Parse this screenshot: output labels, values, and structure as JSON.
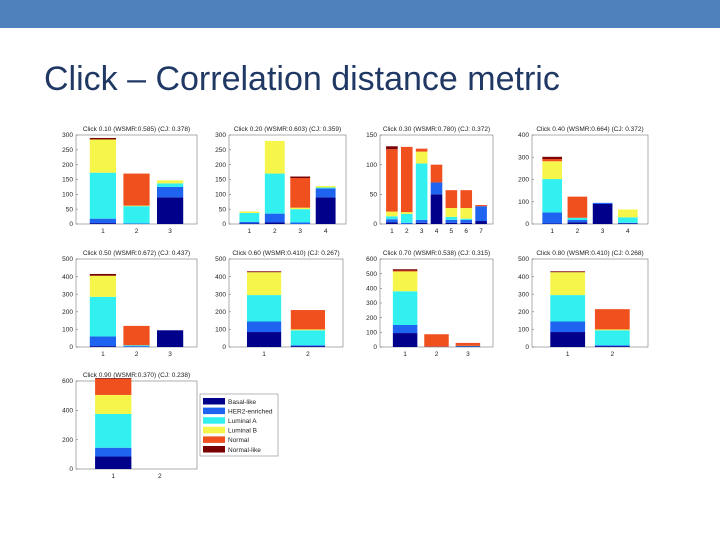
{
  "slide": {
    "title": "Click – Correlation distance metric"
  },
  "colors": {
    "Basal-like": "#00008b",
    "HER2-enriched": "#1e64f0",
    "Luminal A": "#33f0f0",
    "Luminal B": "#f5f54a",
    "Normal": "#f0501e",
    "Normal-like": "#7a0000"
  },
  "legend": {
    "entries": [
      "Basal-like",
      "HER2-enriched",
      "Luminal A",
      "Luminal B",
      "Normal",
      "Normal-like"
    ]
  },
  "chart_data": [
    {
      "type": "bar",
      "stacked": true,
      "title": "Click 0.10 (WSMR:0.585) (CJ: 0.378)",
      "categories": [
        "1",
        "2",
        "3"
      ],
      "ylim": [
        0,
        300
      ],
      "yticks": [
        0,
        50,
        100,
        150,
        200,
        250,
        300
      ],
      "series": [
        {
          "name": "Basal-like",
          "values": [
            3,
            0,
            90
          ]
        },
        {
          "name": "HER2-enriched",
          "values": [
            15,
            2,
            35
          ]
        },
        {
          "name": "Luminal A",
          "values": [
            155,
            58,
            12
          ]
        },
        {
          "name": "Luminal B",
          "values": [
            112,
            2,
            10
          ]
        },
        {
          "name": "Normal",
          "values": [
            0,
            108,
            0
          ]
        },
        {
          "name": "Normal-like",
          "values": [
            5,
            0,
            0
          ]
        }
      ]
    },
    {
      "type": "bar",
      "stacked": true,
      "title": "Click 0.20 (WSMR:0.603) (CJ: 0.359)",
      "categories": [
        "1",
        "2",
        "3",
        "4"
      ],
      "ylim": [
        0,
        300
      ],
      "yticks": [
        0,
        50,
        100,
        150,
        200,
        250,
        300
      ],
      "series": [
        {
          "name": "Basal-like",
          "values": [
            2,
            5,
            0,
            90
          ]
        },
        {
          "name": "HER2-enriched",
          "values": [
            5,
            30,
            5,
            30
          ]
        },
        {
          "name": "Luminal A",
          "values": [
            30,
            135,
            45,
            3
          ]
        },
        {
          "name": "Luminal B",
          "values": [
            5,
            110,
            5,
            5
          ]
        },
        {
          "name": "Normal",
          "values": [
            0,
            0,
            100,
            0
          ]
        },
        {
          "name": "Normal-like",
          "values": [
            0,
            0,
            5,
            0
          ]
        }
      ]
    },
    {
      "type": "bar",
      "stacked": true,
      "title": "Click 0.30 (WSMR:0.780) (CJ: 0.372)",
      "categories": [
        "1",
        "2",
        "3",
        "4",
        "5",
        "6",
        "7"
      ],
      "ylim": [
        0,
        150
      ],
      "yticks": [
        0,
        50,
        100,
        150
      ],
      "series": [
        {
          "name": "Basal-like",
          "values": [
            3,
            0,
            2,
            50,
            2,
            2,
            5
          ]
        },
        {
          "name": "HER2-enriched",
          "values": [
            5,
            2,
            5,
            20,
            5,
            5,
            25
          ]
        },
        {
          "name": "Luminal A",
          "values": [
            5,
            15,
            95,
            0,
            5,
            2,
            0
          ]
        },
        {
          "name": "Luminal B",
          "values": [
            8,
            3,
            20,
            0,
            15,
            18,
            0
          ]
        },
        {
          "name": "Normal",
          "values": [
            105,
            110,
            5,
            30,
            30,
            30,
            2
          ]
        },
        {
          "name": "Normal-like",
          "values": [
            5,
            0,
            0,
            0,
            0,
            0,
            0
          ]
        }
      ]
    },
    {
      "type": "bar",
      "stacked": true,
      "title": "Click 0.40 (WSMR:0.664) (CJ: 0.372)",
      "categories": [
        "1",
        "2",
        "3",
        "4"
      ],
      "ylim": [
        0,
        400
      ],
      "yticks": [
        0,
        100,
        200,
        300,
        400
      ],
      "series": [
        {
          "name": "Basal-like",
          "values": [
            2,
            8,
            90,
            3
          ]
        },
        {
          "name": "HER2-enriched",
          "values": [
            50,
            10,
            5,
            2
          ]
        },
        {
          "name": "Luminal A",
          "values": [
            150,
            10,
            0,
            25
          ]
        },
        {
          "name": "Luminal B",
          "values": [
            80,
            0,
            0,
            35
          ]
        },
        {
          "name": "Normal",
          "values": [
            10,
            95,
            0,
            0
          ]
        },
        {
          "name": "Normal-like",
          "values": [
            10,
            0,
            0,
            0
          ]
        }
      ]
    },
    {
      "type": "bar",
      "stacked": true,
      "title": "Click 0.50 (WSMR:0.672) (CJ: 0.437)",
      "categories": [
        "1",
        "2",
        "3"
      ],
      "ylim": [
        0,
        500
      ],
      "yticks": [
        0,
        100,
        200,
        300,
        400,
        500
      ],
      "series": [
        {
          "name": "Basal-like",
          "values": [
            5,
            0,
            95
          ]
        },
        {
          "name": "HER2-enriched",
          "values": [
            55,
            5,
            0
          ]
        },
        {
          "name": "Luminal A",
          "values": [
            225,
            5,
            0
          ]
        },
        {
          "name": "Luminal B",
          "values": [
            120,
            0,
            0
          ]
        },
        {
          "name": "Normal",
          "values": [
            0,
            110,
            0
          ]
        },
        {
          "name": "Normal-like",
          "values": [
            10,
            0,
            0
          ]
        }
      ]
    },
    {
      "type": "bar",
      "stacked": true,
      "title": "Click 0.60 (WSMR:0.410) (CJ: 0.267)",
      "categories": [
        "1",
        "2"
      ],
      "ylim": [
        0,
        500
      ],
      "yticks": [
        0,
        100,
        200,
        300,
        400,
        500
      ],
      "series": [
        {
          "name": "Basal-like",
          "values": [
            85,
            5
          ]
        },
        {
          "name": "HER2-enriched",
          "values": [
            60,
            5
          ]
        },
        {
          "name": "Luminal A",
          "values": [
            150,
            85
          ]
        },
        {
          "name": "Luminal B",
          "values": [
            130,
            5
          ]
        },
        {
          "name": "Normal",
          "values": [
            0,
            110
          ]
        },
        {
          "name": "Normal-like",
          "values": [
            5,
            0
          ]
        }
      ]
    },
    {
      "type": "bar",
      "stacked": true,
      "title": "Click 0.70 (WSMR:0.538) (CJ: 0.315)",
      "categories": [
        "1",
        "2",
        "3"
      ],
      "ylim": [
        0,
        600
      ],
      "yticks": [
        0,
        100,
        200,
        300,
        400,
        500,
        600
      ],
      "series": [
        {
          "name": "Basal-like",
          "values": [
            95,
            0,
            5
          ]
        },
        {
          "name": "HER2-enriched",
          "values": [
            55,
            2,
            0
          ]
        },
        {
          "name": "Luminal A",
          "values": [
            230,
            0,
            3
          ]
        },
        {
          "name": "Luminal B",
          "values": [
            135,
            0,
            0
          ]
        },
        {
          "name": "Normal",
          "values": [
            5,
            85,
            20
          ]
        },
        {
          "name": "Normal-like",
          "values": [
            10,
            0,
            0
          ]
        }
      ]
    },
    {
      "type": "bar",
      "stacked": true,
      "title": "Click 0.80 (WSMR:0.410) (CJ: 0.268)",
      "categories": [
        "1",
        "2"
      ],
      "ylim": [
        0,
        500
      ],
      "yticks": [
        0,
        100,
        200,
        300,
        400,
        500
      ],
      "series": [
        {
          "name": "Basal-like",
          "values": [
            85,
            5
          ]
        },
        {
          "name": "HER2-enriched",
          "values": [
            60,
            5
          ]
        },
        {
          "name": "Luminal A",
          "values": [
            150,
            85
          ]
        },
        {
          "name": "Luminal B",
          "values": [
            130,
            5
          ]
        },
        {
          "name": "Normal",
          "values": [
            0,
            115
          ]
        },
        {
          "name": "Normal-like",
          "values": [
            5,
            0
          ]
        }
      ]
    },
    {
      "type": "bar",
      "stacked": true,
      "title": "Click 0.90 (WSMR:0.370) (CJ: 0.238)",
      "categories": [
        "1",
        "2"
      ],
      "ylim": [
        0,
        600
      ],
      "yticks": [
        0,
        200,
        400,
        600
      ],
      "series": [
        {
          "name": "Basal-like",
          "values": [
            85,
            0
          ]
        },
        {
          "name": "HER2-enriched",
          "values": [
            60,
            0
          ]
        },
        {
          "name": "Luminal A",
          "values": [
            230,
            0
          ]
        },
        {
          "name": "Luminal B",
          "values": [
            130,
            0
          ]
        },
        {
          "name": "Normal",
          "values": [
            110,
            0
          ]
        },
        {
          "name": "Normal-like",
          "values": [
            5,
            0
          ]
        }
      ]
    }
  ]
}
